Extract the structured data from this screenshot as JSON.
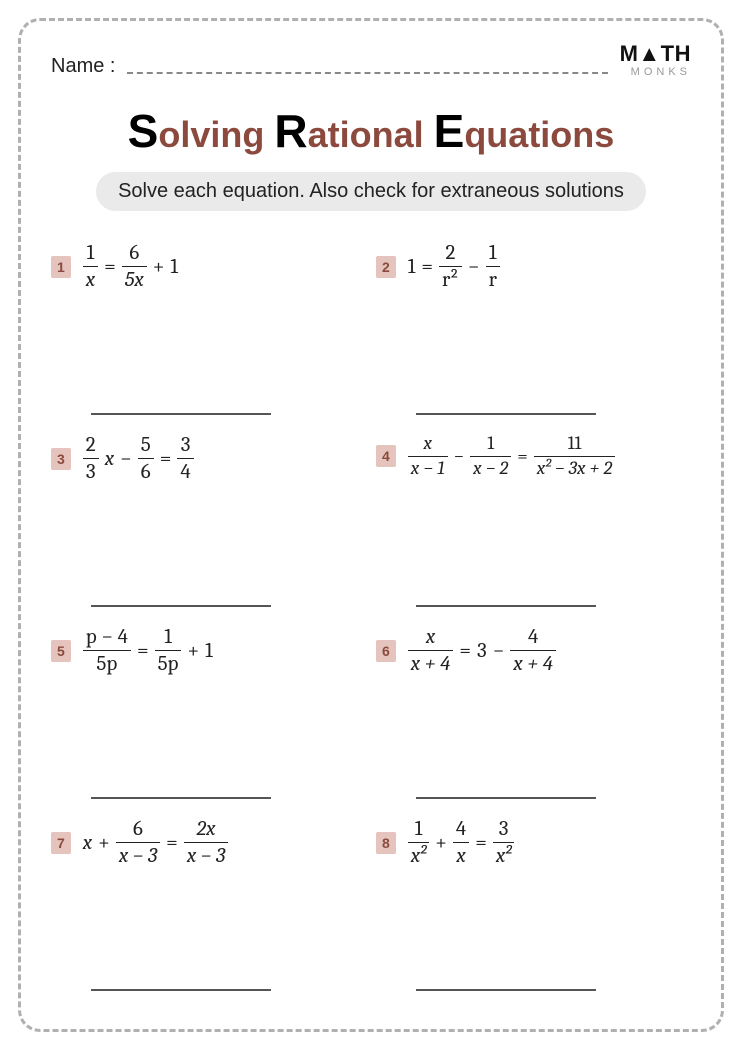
{
  "header": {
    "name_label": "Name :",
    "logo_top": "M▲TH",
    "logo_bottom": "MONKS"
  },
  "title": {
    "s": "S",
    "w1": "olving ",
    "r": "R",
    "w2": "ational ",
    "e": "E",
    "w3": "quations"
  },
  "subtitle": "Solve each equation. Also check for extraneous solutions",
  "problems": [
    {
      "n": "1",
      "lhs_top": "1",
      "lhs_bot": "x",
      "op1": "=",
      "rhs1_top": "6",
      "rhs1_bot": "5x",
      "op2": "+",
      "tail": "1"
    },
    {
      "n": "2",
      "lead": "1",
      "op1": "=",
      "rhs1_top": "2",
      "rhs1_bot": "r²",
      "op2": "−",
      "rhs2_top": "1",
      "rhs2_bot": "r"
    },
    {
      "n": "3",
      "lhs_top": "2",
      "lhs_bot": "3",
      "mid": "x",
      "op1": "−",
      "rhs1_top": "5",
      "rhs1_bot": "6",
      "op2": "=",
      "rhs2_top": "3",
      "rhs2_bot": "4"
    },
    {
      "n": "4",
      "lhs_top": "x",
      "lhs_bot": "x − 1",
      "op1": "−",
      "rhs1_top": "1",
      "rhs1_bot": "x − 2",
      "op2": "=",
      "rhs2_top": "11",
      "rhs2_bot": "x² − 3x + 2"
    },
    {
      "n": "5",
      "lhs_top": "p − 4",
      "lhs_bot": "5p",
      "op1": "=",
      "rhs1_top": "1",
      "rhs1_bot": "5p",
      "op2": "+",
      "tail": "1"
    },
    {
      "n": "6",
      "lhs_top": "x",
      "lhs_bot": "x + 4",
      "op1": "=",
      "mid": "3",
      "op2": "−",
      "rhs2_top": "4",
      "rhs2_bot": "x + 4"
    },
    {
      "n": "7",
      "lead": "x",
      "op0": "+",
      "lhs_top": "6",
      "lhs_bot": "x − 3",
      "op1": "=",
      "rhs1_top": "2x",
      "rhs1_bot": "x − 3"
    },
    {
      "n": "8",
      "lhs_top": "1",
      "lhs_bot": "x²",
      "op1": "+",
      "rhs1_top": "4",
      "rhs1_bot": "x",
      "op2": "=",
      "rhs2_top": "3",
      "rhs2_bot": "x²"
    }
  ]
}
